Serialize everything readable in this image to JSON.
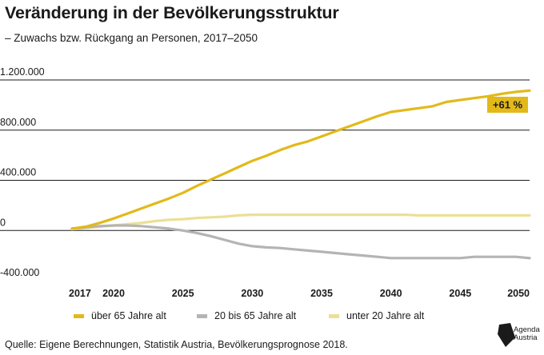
{
  "header": {
    "title": "Veränderung in der Bevölkerungsstruktur",
    "subtitle": "– Zuwachs bzw. Rückgang an Personen, 2017–2050"
  },
  "colors": {
    "over65": "#e2b919",
    "age20to65": "#b4b4b4",
    "under20": "#ecdf96",
    "gridline": "#1a1a1a",
    "badge_bg": "#e2b919"
  },
  "chart_data": {
    "type": "line",
    "xlim": [
      2017,
      2050
    ],
    "ylim": [
      -400000,
      1200000
    ],
    "x_ticks": [
      2017,
      2020,
      2025,
      2030,
      2035,
      2040,
      2045,
      2050
    ],
    "x_tick_labels": [
      "2017",
      "2020",
      "2025",
      "2030",
      "2035",
      "2040",
      "2045",
      "2050"
    ],
    "y_ticks": [
      1200000,
      800000,
      400000,
      0,
      -400000
    ],
    "y_tick_labels": [
      "1.200.000",
      "800.000",
      "400.000",
      "0",
      "-400.000"
    ],
    "grid": "horizontal",
    "legend_position": "bottom",
    "series": [
      {
        "name": "über 65 Jahre alt",
        "color": "#e2b919",
        "x": [
          2017,
          2018,
          2019,
          2020,
          2021,
          2022,
          2023,
          2024,
          2025,
          2026,
          2027,
          2028,
          2029,
          2030,
          2031,
          2032,
          2033,
          2034,
          2035,
          2036,
          2037,
          2038,
          2039,
          2040,
          2041,
          2042,
          2043,
          2044,
          2045,
          2046,
          2047,
          2048,
          2049,
          2050
        ],
        "values": [
          15000,
          30000,
          60000,
          95000,
          135000,
          175000,
          215000,
          255000,
          300000,
          355000,
          405000,
          455000,
          505000,
          555000,
          595000,
          640000,
          680000,
          710000,
          750000,
          790000,
          830000,
          870000,
          910000,
          945000,
          960000,
          975000,
          990000,
          1025000,
          1040000,
          1055000,
          1070000,
          1090000,
          1105000,
          1115000
        ]
      },
      {
        "name": "20 bis 65 Jahre alt",
        "color": "#b4b4b4",
        "x": [
          2017,
          2018,
          2019,
          2020,
          2021,
          2022,
          2023,
          2024,
          2025,
          2026,
          2027,
          2028,
          2029,
          2030,
          2031,
          2032,
          2033,
          2034,
          2035,
          2036,
          2037,
          2038,
          2039,
          2040,
          2041,
          2042,
          2043,
          2044,
          2045,
          2046,
          2047,
          2048,
          2049,
          2050
        ],
        "values": [
          15000,
          25000,
          35000,
          40000,
          40000,
          35000,
          25000,
          15000,
          0,
          -20000,
          -45000,
          -75000,
          -105000,
          -125000,
          -135000,
          -140000,
          -150000,
          -160000,
          -170000,
          -180000,
          -190000,
          -200000,
          -210000,
          -220000,
          -220000,
          -220000,
          -220000,
          -220000,
          -220000,
          -210000,
          -210000,
          -210000,
          -210000,
          -220000
        ]
      },
      {
        "name": "unter 20 Jahre alt",
        "color": "#ecdf96",
        "x": [
          2017,
          2018,
          2019,
          2020,
          2021,
          2022,
          2023,
          2024,
          2025,
          2026,
          2027,
          2028,
          2029,
          2030,
          2031,
          2032,
          2033,
          2034,
          2035,
          2036,
          2037,
          2038,
          2039,
          2040,
          2041,
          2042,
          2043,
          2044,
          2045,
          2046,
          2047,
          2048,
          2049,
          2050
        ],
        "values": [
          10000,
          20000,
          30000,
          40000,
          50000,
          60000,
          75000,
          85000,
          90000,
          100000,
          105000,
          110000,
          120000,
          125000,
          125000,
          125000,
          125000,
          125000,
          125000,
          125000,
          125000,
          125000,
          125000,
          125000,
          125000,
          120000,
          120000,
          120000,
          120000,
          120000,
          120000,
          120000,
          120000,
          120000
        ]
      }
    ],
    "annotations": [
      {
        "text": "+61 %",
        "series": "über 65 Jahre alt"
      }
    ]
  },
  "footer": {
    "source": "Quelle: Eigene Berechnungen, Statistik Austria, Bevölkerungsprognose 2018."
  },
  "logo": {
    "icon": "agenda-austria-logo-icon",
    "line1": "Agenda",
    "line2": "Austria"
  }
}
